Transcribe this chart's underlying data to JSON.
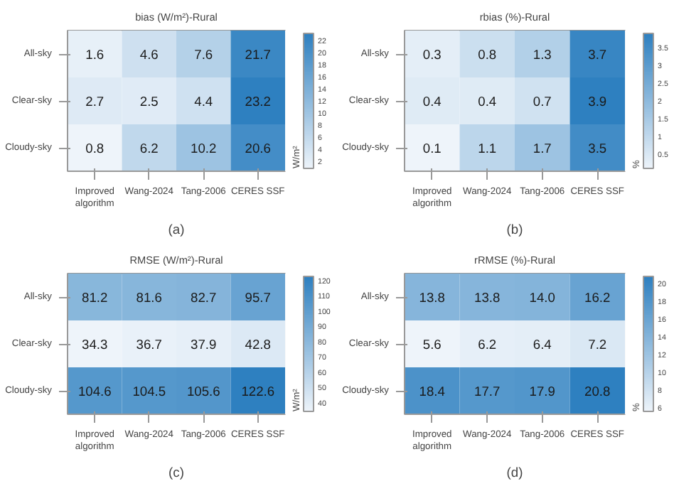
{
  "chart_data": [
    {
      "type": "heatmap",
      "title": "bias (W/m²)-Rural",
      "clabel": "W/m²",
      "categories": [
        "Improved algorithm",
        "Wang-2024",
        "Tang-2006",
        "CERES SSF"
      ],
      "y_categories": [
        "All-sky",
        "Clear-sky",
        "Cloudy-sky"
      ],
      "cells": [
        [
          1.6,
          4.6,
          7.6,
          21.7
        ],
        [
          2.7,
          2.5,
          4.4,
          23.2
        ],
        [
          0.8,
          6.2,
          10.2,
          20.6
        ]
      ],
      "clim": [
        0.8,
        23.2
      ],
      "cticks": [
        2,
        4,
        6,
        8,
        10,
        12,
        14,
        16,
        18,
        20,
        22
      ],
      "data_labels": true,
      "annotations": [
        "(a)"
      ]
    },
    {
      "type": "heatmap",
      "title": "rbias (%)-Rural",
      "clabel": "%",
      "categories": [
        "Improved algorithm",
        "Wang-2024",
        "Tang-2006",
        "CERES SSF"
      ],
      "y_categories": [
        "All-sky",
        "Clear-sky",
        "Cloudy-sky"
      ],
      "cells": [
        [
          0.3,
          0.8,
          1.3,
          3.7
        ],
        [
          0.4,
          0.4,
          0.7,
          3.9
        ],
        [
          0.1,
          1.1,
          1.7,
          3.5
        ]
      ],
      "clim": [
        0.1,
        3.9
      ],
      "cticks": [
        0.5,
        1,
        1.5,
        2,
        2.5,
        3,
        3.5
      ],
      "data_labels": true,
      "annotations": [
        "(b)"
      ]
    },
    {
      "type": "heatmap",
      "title": "RMSE (W/m²)-Rural",
      "clabel": "W/m²",
      "categories": [
        "Improved algorithm",
        "Wang-2024",
        "Tang-2006",
        "CERES SSF"
      ],
      "y_categories": [
        "All-sky",
        "Clear-sky",
        "Cloudy-sky"
      ],
      "cells": [
        [
          81.2,
          81.6,
          82.7,
          95.7
        ],
        [
          34.3,
          36.7,
          37.9,
          42.8
        ],
        [
          104.6,
          104.5,
          105.6,
          122.6
        ]
      ],
      "clim": [
        34.3,
        122.6
      ],
      "cticks": [
        40,
        50,
        60,
        70,
        80,
        90,
        100,
        110,
        120
      ],
      "data_labels": true,
      "annotations": [
        "(c)"
      ]
    },
    {
      "type": "heatmap",
      "title": "rRMSE (%)-Rural",
      "clabel": "%",
      "categories": [
        "Improved algorithm",
        "Wang-2024",
        "Tang-2006",
        "CERES SSF"
      ],
      "y_categories": [
        "All-sky",
        "Clear-sky",
        "Cloudy-sky"
      ],
      "cells": [
        [
          13.8,
          13.8,
          14.0,
          16.2
        ],
        [
          5.6,
          6.2,
          6.4,
          7.2
        ],
        [
          18.4,
          17.7,
          17.9,
          20.8
        ]
      ],
      "cell_labels": [
        [
          "13.8",
          "13.8",
          "14.0",
          "16.2"
        ],
        [
          "5.6",
          "6.2",
          "6.4",
          "7.2"
        ],
        [
          "18.4",
          "17.7",
          "17.9",
          "20.8"
        ]
      ],
      "clim": [
        5.6,
        20.8
      ],
      "cticks": [
        6,
        8,
        10,
        12,
        14,
        16,
        18,
        20
      ],
      "data_labels": true,
      "annotations": [
        "(d)"
      ]
    }
  ]
}
